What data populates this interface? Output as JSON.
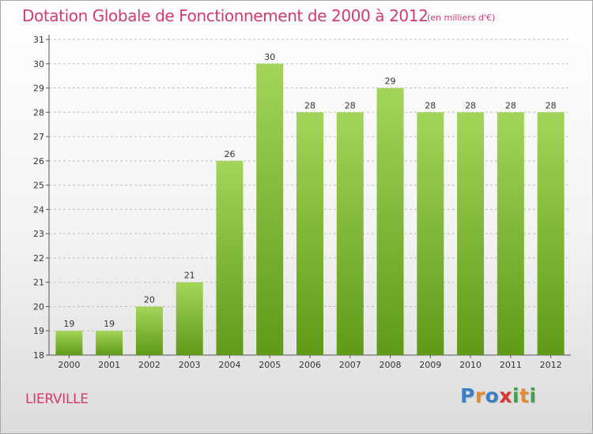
{
  "header": {
    "title": "Dotation Globale de Fonctionnement de 2000 à 2012",
    "subtitle": "(en milliers d'€)"
  },
  "footer": {
    "commune": "LIERVILLE",
    "logo_letters": [
      "P",
      "r",
      "o",
      "x",
      "i",
      "t",
      "i"
    ],
    "logo_colors": [
      "#3a7fc4",
      "#e38b2a",
      "#3a7fc4",
      "#d9362f",
      "#3fa34d",
      "#e38b2a",
      "#3fa34d"
    ]
  },
  "colors": {
    "bar_light": "#a3d55a",
    "bar_dark": "#5f9a18",
    "grid": "#bfbfbf",
    "axis": "#555555"
  },
  "chart_data": {
    "type": "bar",
    "categories": [
      "2000",
      "2001",
      "2002",
      "2003",
      "2004",
      "2005",
      "2006",
      "2007",
      "2008",
      "2009",
      "2010",
      "2011",
      "2012"
    ],
    "values": [
      19,
      19,
      20,
      21,
      26,
      30,
      28,
      28,
      29,
      28,
      28,
      28,
      28
    ],
    "data_labels": [
      "19",
      "19",
      "20",
      "21",
      "26",
      "30",
      "28",
      "28",
      "29",
      "28",
      "28",
      "28",
      "28"
    ],
    "ylim": [
      18,
      31
    ],
    "yticks": [
      "18",
      "19",
      "20",
      "21",
      "22",
      "23",
      "24",
      "25",
      "26",
      "27",
      "28",
      "29",
      "30",
      "31"
    ],
    "grid": true,
    "grid_style": "dashed"
  }
}
